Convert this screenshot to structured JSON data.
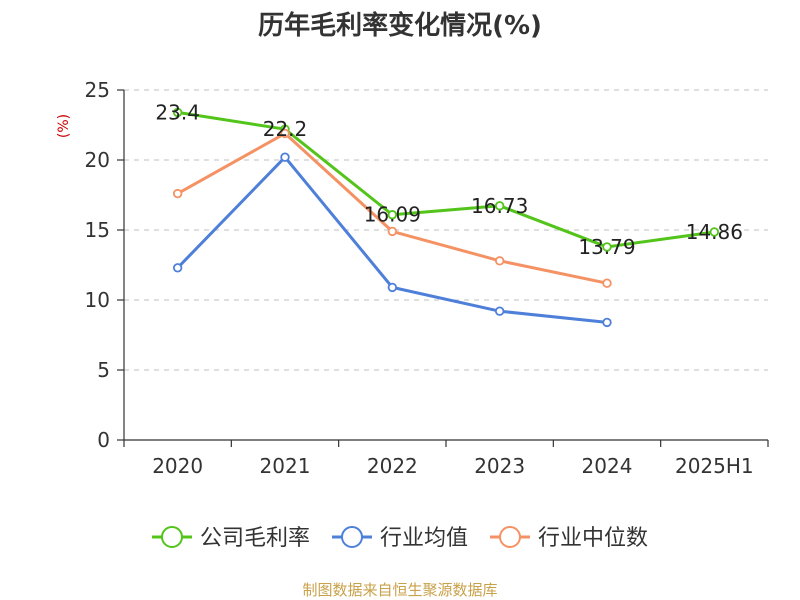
{
  "chart_data": {
    "type": "line",
    "title": "历年毛利率变化情况(%)",
    "ylabel": "(%)",
    "categories": [
      "2020",
      "2021",
      "2022",
      "2023",
      "2024",
      "2025H1"
    ],
    "ylim": [
      0,
      25
    ],
    "yticks": [
      0,
      5,
      10,
      15,
      20,
      25
    ],
    "grid": true,
    "legend_position": "bottom",
    "series": [
      {
        "name": "公司毛利率",
        "color": "#52c41a",
        "values": [
          23.4,
          22.2,
          16.09,
          16.73,
          13.79,
          14.86
        ],
        "labels": [
          "23.4",
          "22.2",
          "16.09",
          "16.73",
          "13.79",
          "14.86"
        ]
      },
      {
        "name": "行业均值",
        "color": "#4e7fd9",
        "values": [
          12.3,
          20.2,
          10.9,
          9.2,
          8.4,
          null
        ]
      },
      {
        "name": "行业中位数",
        "color": "#f59264",
        "values": [
          17.6,
          21.9,
          14.9,
          12.8,
          11.2,
          null
        ]
      }
    ]
  },
  "colors": {
    "axis": "#333333",
    "grid": "#cccccc",
    "unit_label": "#cc0000",
    "source": "#c8a24a"
  },
  "footer": {
    "source": "制图数据来自恒生聚源数据库"
  }
}
